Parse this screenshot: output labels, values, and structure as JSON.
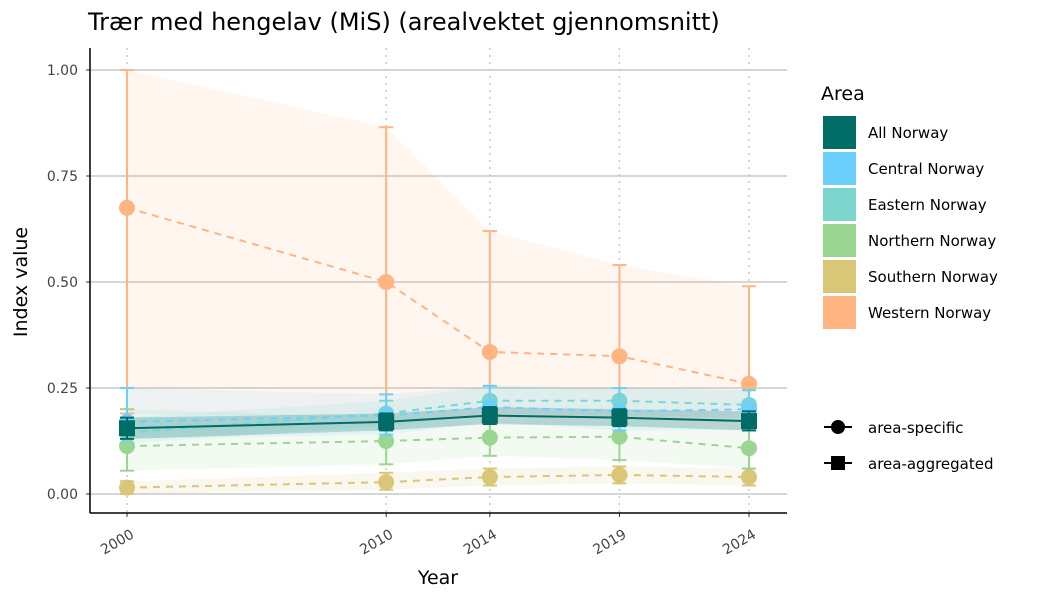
{
  "chart_data": {
    "type": "line",
    "title": "Trær med hengelav (MiS) (arealvektet gjennomsnitt)",
    "xlabel": "Year",
    "ylabel": "Index value",
    "x": [
      2000,
      2010,
      2014,
      2019,
      2024
    ],
    "xticks": [
      "2000",
      "2010",
      "2014",
      "2019",
      "2024"
    ],
    "ylim": [
      0,
      1
    ],
    "yticks": [
      "0.00",
      "0.25",
      "0.50",
      "0.75",
      "1.00"
    ],
    "yticks_values": [
      0,
      0.25,
      0.5,
      0.75,
      1
    ],
    "legend_title": "Area",
    "legend_position": "right",
    "series": [
      {
        "name": "Western Norway",
        "color": "#FFB482",
        "type": "area-specific",
        "values": [
          0.675,
          0.5,
          0.335,
          0.325,
          0.26
        ],
        "lower": [
          0.19,
          0.18,
          0.17,
          0.17,
          0.15
        ],
        "upper": [
          1.0,
          0.865,
          0.62,
          0.54,
          0.49
        ]
      },
      {
        "name": "Southern Norway",
        "color": "#D9C677",
        "type": "area-specific",
        "values": [
          0.015,
          0.028,
          0.04,
          0.045,
          0.04
        ],
        "lower": [
          0.0,
          0.01,
          0.02,
          0.025,
          0.02
        ],
        "upper": [
          0.03,
          0.05,
          0.06,
          0.065,
          0.06
        ]
      },
      {
        "name": "Northern Norway",
        "color": "#9BD592",
        "type": "area-specific",
        "values": [
          0.113,
          0.125,
          0.133,
          0.135,
          0.108
        ],
        "lower": [
          0.055,
          0.07,
          0.09,
          0.08,
          0.06
        ],
        "upper": [
          0.2,
          0.18,
          0.17,
          0.17,
          0.15
        ]
      },
      {
        "name": "Eastern Norway",
        "color": "#7CD6CE",
        "type": "area-specific",
        "values": [
          0.145,
          0.19,
          0.22,
          0.22,
          0.21
        ],
        "lower": [
          0.12,
          0.16,
          0.19,
          0.185,
          0.18
        ],
        "upper": [
          0.18,
          0.22,
          0.255,
          0.25,
          0.245
        ]
      },
      {
        "name": "Central Norway",
        "color": "#6DCFFB",
        "type": "area-specific",
        "values": [
          0.17,
          0.185,
          0.205,
          0.195,
          0.2
        ],
        "lower": [
          0.13,
          0.14,
          0.17,
          0.15,
          0.15
        ],
        "upper": [
          0.25,
          0.235,
          0.255,
          0.25,
          0.245
        ]
      },
      {
        "name": "All Norway",
        "color": "#006C66",
        "type": "area-aggregated",
        "values": [
          0.155,
          0.17,
          0.185,
          0.18,
          0.172
        ],
        "lower": [
          0.13,
          0.15,
          0.165,
          0.16,
          0.15
        ],
        "upper": [
          0.18,
          0.19,
          0.205,
          0.2,
          0.195
        ]
      }
    ],
    "legend_order": [
      "All Norway",
      "Central Norway",
      "Eastern Norway",
      "Northern Norway",
      "Southern Norway",
      "Western Norway"
    ],
    "shape_legend": [
      "area-specific",
      "area-aggregated"
    ]
  }
}
